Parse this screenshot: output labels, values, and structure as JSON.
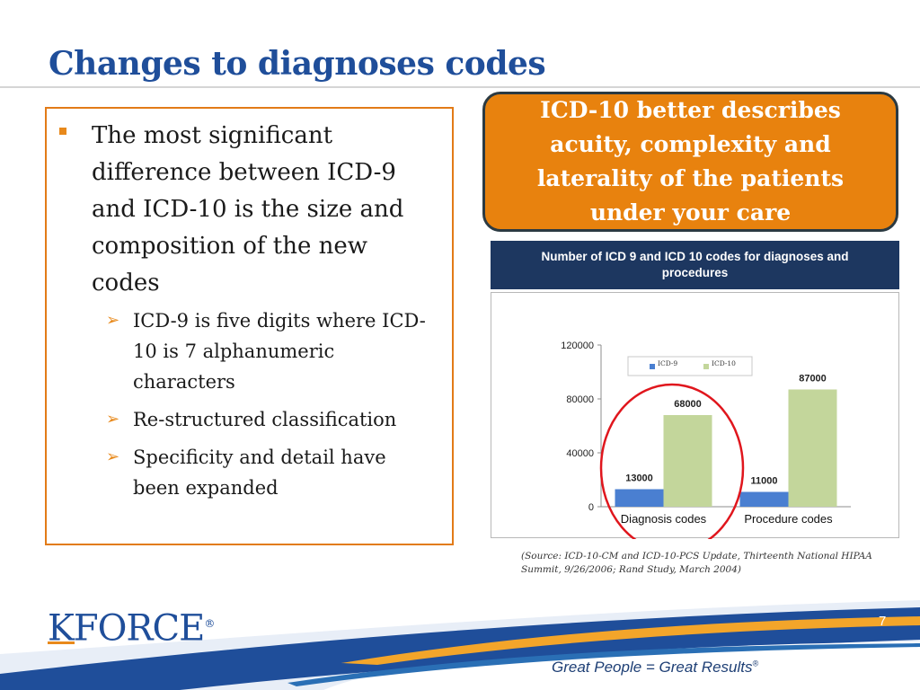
{
  "slide": {
    "title": "Changes to diagnoses codes",
    "page_number": "7"
  },
  "bullets": {
    "main": "The most significant difference between ICD-9 and ICD-10 is the size and composition of the new codes",
    "sub": [
      "ICD-9 is five digits where ICD-10 is 7 alphanumeric characters",
      "Re-structured classification",
      "Specificity and detail have been expanded"
    ]
  },
  "callout": {
    "text": "ICD-10 better describes acuity, complexity and laterality of the patients under your care"
  },
  "chart": {
    "header": "Number of ICD 9 and ICD 10  codes for diagnoses and procedures"
  },
  "chart_data": {
    "type": "bar",
    "categories": [
      "Diagnosis codes",
      "Procedure codes"
    ],
    "series": [
      {
        "name": "ICD-9",
        "values": [
          13000,
          11000
        ],
        "color": "#4a7fd1"
      },
      {
        "name": "ICD-10",
        "values": [
          68000,
          87000
        ],
        "color": "#c3d69b"
      }
    ],
    "yticks": [
      "0",
      "40000",
      "80000",
      "120000"
    ],
    "ylim": [
      0,
      120000
    ],
    "legend": "top-center",
    "grid": false
  },
  "source": "(Source: ICD-10-CM and ICD-10-PCS Update, Thirteenth National HIPAA Summit, 9/26/2006; Rand Study, March 2004)",
  "footer": {
    "logo": "KFORCE",
    "logo_mark": "®",
    "tagline": "Great People = Great Results",
    "tagline_mark": "®"
  },
  "colors": {
    "title": "#1f4e9a",
    "accent_orange": "#e8820e",
    "header_navy": "#1d3760",
    "highlight_circle": "#e0161d"
  }
}
